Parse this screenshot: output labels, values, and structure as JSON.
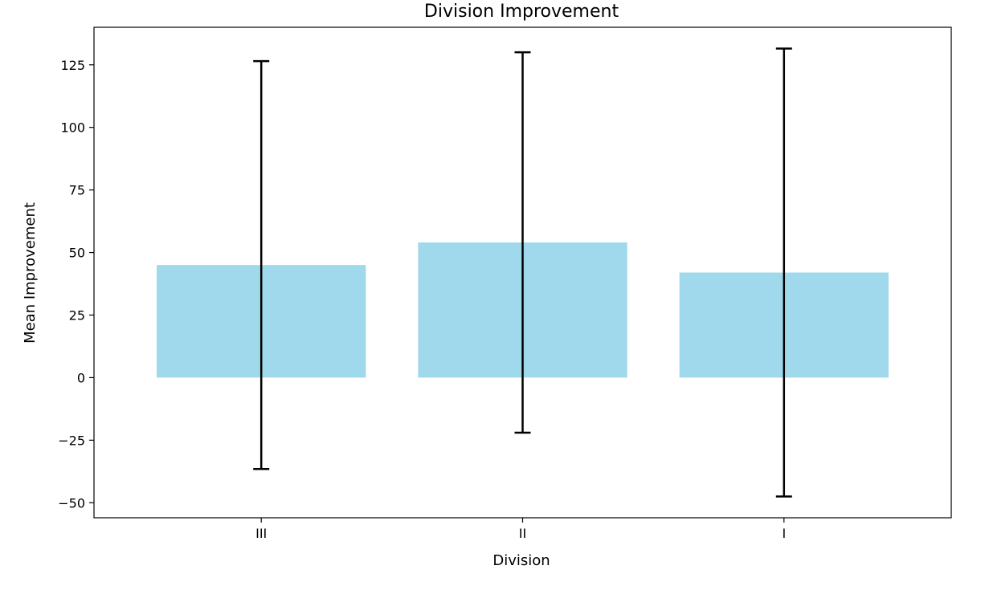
{
  "chart_data": {
    "type": "bar",
    "title": "Division Improvement",
    "xlabel": "Division",
    "ylabel": "Mean Improvement",
    "categories": [
      "III",
      "II",
      "I"
    ],
    "values": [
      45,
      54,
      42
    ],
    "error": [
      81.5,
      76,
      89.5
    ],
    "ylim": [
      -56,
      140
    ],
    "yticks": [
      -50,
      -25,
      0,
      25,
      50,
      75,
      100,
      125
    ],
    "ytick_labels": [
      "−50",
      "−25",
      "0",
      "25",
      "50",
      "75",
      "100",
      "125"
    ],
    "grid": false,
    "legend": "none",
    "colors": {
      "bar": "#a0d8ec",
      "errorbar": "#000000",
      "axis": "#000000"
    }
  }
}
